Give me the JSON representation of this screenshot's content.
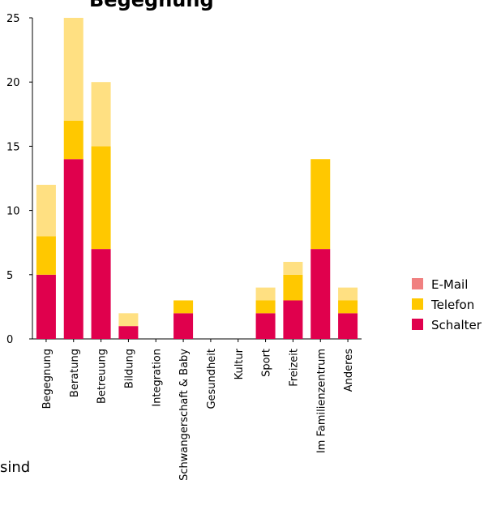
{
  "title_fragment": "Begegnung",
  "side_fragment": "sind",
  "chart_data": {
    "type": "bar",
    "stacked": true,
    "categories": [
      "Begegnung",
      "Beratung",
      "Betreuung",
      "Bildung",
      "Integration",
      "Schwangerschaft & Baby",
      "Gesundheit",
      "Kultur",
      "Sport",
      "Freizeit",
      "Im Familienzentrum",
      "Anderes"
    ],
    "series": [
      {
        "name": "Schalter",
        "color": "#e0004d",
        "values": [
          5,
          14,
          7,
          1,
          0,
          2,
          0,
          0,
          2,
          3,
          7,
          2
        ]
      },
      {
        "name": "Telefon",
        "color": "#ffc800",
        "values": [
          3,
          3,
          8,
          0,
          0,
          1,
          0,
          0,
          1,
          2,
          7,
          1
        ]
      },
      {
        "name": "E-Mail (hell)",
        "color": "#ffe082",
        "values": [
          4,
          8,
          5,
          1,
          0,
          0,
          0,
          0,
          1,
          1,
          0,
          1
        ]
      }
    ],
    "legend": [
      {
        "label": "E-Mail",
        "color": "#f08080"
      },
      {
        "label": "Telefon",
        "color": "#ffc800"
      },
      {
        "label": "Schalter",
        "color": "#e0004d"
      }
    ],
    "yticks": [
      "0",
      "5",
      "10",
      "15",
      "20",
      "25"
    ],
    "ylim": [
      0,
      25
    ],
    "legend_position": "right"
  }
}
